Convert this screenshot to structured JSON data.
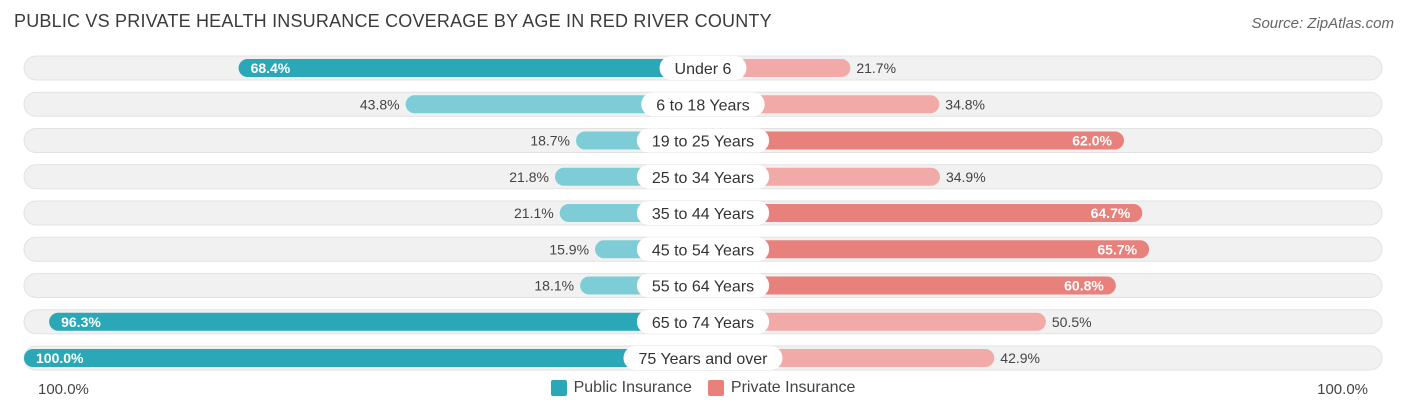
{
  "header": {
    "title": "PUBLIC VS PRIVATE HEALTH INSURANCE COVERAGE BY AGE IN RED RIVER COUNTY",
    "source": "Source: ZipAtlas.com"
  },
  "axis": {
    "left_label": "100.0%",
    "right_label": "100.0%"
  },
  "legend": {
    "public_label": "Public Insurance",
    "private_label": "Private Insurance"
  },
  "colors": {
    "public_strong": "#2aa8b8",
    "public_light": "#7ecdd6",
    "private_strong": "#e8807c",
    "private_light": "#f1aaa7",
    "track": "#f1f1f1"
  },
  "chart_data": {
    "type": "bar",
    "orientation": "horizontal-diverging",
    "title": "PUBLIC VS PRIVATE HEALTH INSURANCE COVERAGE BY AGE IN RED RIVER COUNTY",
    "categories": [
      "Under 6",
      "6 to 18 Years",
      "19 to 25 Years",
      "25 to 34 Years",
      "35 to 44 Years",
      "45 to 54 Years",
      "55 to 64 Years",
      "65 to 74 Years",
      "75 Years and over"
    ],
    "series": [
      {
        "name": "Public Insurance",
        "values": [
          68.4,
          43.8,
          18.7,
          21.8,
          21.1,
          15.9,
          18.1,
          96.3,
          100.0
        ],
        "labels": [
          "68.4%",
          "43.8%",
          "18.7%",
          "21.8%",
          "21.1%",
          "15.9%",
          "18.1%",
          "96.3%",
          "100.0%"
        ]
      },
      {
        "name": "Private Insurance",
        "values": [
          21.7,
          34.8,
          62.0,
          34.9,
          64.7,
          65.7,
          60.8,
          50.5,
          42.9
        ],
        "labels": [
          "21.7%",
          "34.8%",
          "62.0%",
          "34.9%",
          "64.7%",
          "65.7%",
          "60.8%",
          "50.5%",
          "42.9%"
        ]
      }
    ],
    "xlim": [
      -100,
      100
    ],
    "legend_position": "bottom-center"
  }
}
